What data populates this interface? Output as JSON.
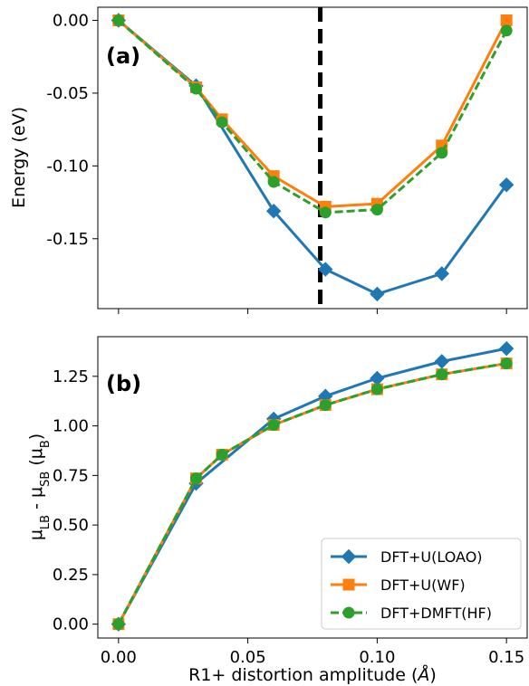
{
  "chart_data": [
    {
      "type": "line",
      "panel_label": "(a)",
      "ylabel": "Energy (eV)",
      "xlabel": "",
      "xlim": [
        -0.008,
        0.158
      ],
      "ylim": [
        -0.198,
        0.009
      ],
      "y_ticks": [
        "0.00",
        "-0.05",
        "-0.10",
        "-0.15"
      ],
      "y_tick_values": [
        0.0,
        -0.05,
        -0.1,
        -0.15
      ],
      "x_ticks_values": [
        0.0,
        0.05,
        0.1,
        0.15
      ],
      "show_x_tick_labels": false,
      "vline": {
        "x": 0.078,
        "style": "dashed",
        "color": "#000000"
      },
      "series": [
        {
          "name": "DFT+U(LOAO)",
          "color": "#1f77b4",
          "marker": "diamond",
          "dash": "solid",
          "x": [
            0.0,
            0.03,
            0.06,
            0.08,
            0.1,
            0.125,
            0.15
          ],
          "y": [
            0.0,
            -0.045,
            -0.131,
            -0.171,
            -0.188,
            -0.174,
            -0.113
          ]
        },
        {
          "name": "DFT+U(WF)",
          "color": "#ff7f0e",
          "marker": "square",
          "dash": "solid",
          "x": [
            0.0,
            0.03,
            0.04,
            0.06,
            0.08,
            0.1,
            0.125,
            0.15
          ],
          "y": [
            0.0,
            -0.046,
            -0.068,
            -0.107,
            -0.128,
            -0.126,
            -0.086,
            0.0
          ]
        },
        {
          "name": "DFT+DMFT(HF)",
          "color": "#2ca02c",
          "marker": "circle",
          "dash": "dashed",
          "x": [
            0.0,
            0.03,
            0.04,
            0.06,
            0.08,
            0.1,
            0.125,
            0.15
          ],
          "y": [
            0.0,
            -0.047,
            -0.07,
            -0.111,
            -0.132,
            -0.13,
            -0.091,
            -0.007
          ]
        }
      ]
    },
    {
      "type": "line",
      "panel_label": "(b)",
      "ylabel": "μ_LB - μ_SB (μ_B)",
      "xlabel": "R1+ distortion amplitude (Å)",
      "xlim": [
        -0.008,
        0.158
      ],
      "ylim": [
        -0.07,
        1.45
      ],
      "y_ticks": [
        "0.00",
        "0.25",
        "0.50",
        "0.75",
        "1.00",
        "1.25"
      ],
      "y_tick_values": [
        0.0,
        0.25,
        0.5,
        0.75,
        1.0,
        1.25
      ],
      "x_ticks": [
        "0.00",
        "0.05",
        "0.10",
        "0.15"
      ],
      "x_tick_values": [
        0.0,
        0.05,
        0.1,
        0.15
      ],
      "legend": {
        "position": "lower-right"
      },
      "series": [
        {
          "name": "DFT+U(LOAO)",
          "color": "#1f77b4",
          "marker": "diamond",
          "dash": "solid",
          "x": [
            0.0,
            0.03,
            0.06,
            0.08,
            0.1,
            0.125,
            0.15
          ],
          "y": [
            0.0,
            0.71,
            1.035,
            1.15,
            1.24,
            1.325,
            1.39
          ]
        },
        {
          "name": "DFT+U(WF)",
          "color": "#ff7f0e",
          "marker": "square",
          "dash": "solid",
          "x": [
            0.0,
            0.03,
            0.04,
            0.06,
            0.08,
            0.1,
            0.125,
            0.15
          ],
          "y": [
            0.0,
            0.735,
            0.855,
            1.005,
            1.105,
            1.185,
            1.26,
            1.315
          ]
        },
        {
          "name": "DFT+DMFT(HF)",
          "color": "#2ca02c",
          "marker": "circle",
          "dash": "dashed",
          "x": [
            0.0,
            0.03,
            0.04,
            0.06,
            0.08,
            0.1,
            0.125,
            0.15
          ],
          "y": [
            0.0,
            0.735,
            0.855,
            1.005,
            1.105,
            1.185,
            1.26,
            1.315
          ]
        }
      ]
    }
  ]
}
